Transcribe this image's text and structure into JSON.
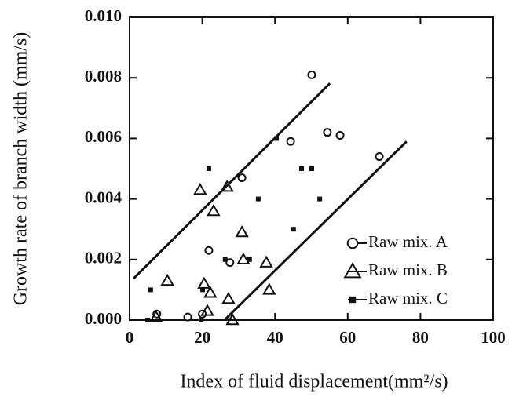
{
  "chart_data": {
    "type": "scatter",
    "xlabel": "Index of fluid  displacement(mm²/s)",
    "ylabel": "Growth rate of branch width (mm/s)",
    "xlim": [
      0,
      100
    ],
    "xticks": [
      0,
      20,
      40,
      60,
      80,
      100
    ],
    "ylim": [
      0,
      0.01
    ],
    "yticks": [
      {
        "value": 0,
        "label": "0.000"
      },
      0.002,
      0.004,
      0.006,
      0.008,
      {
        "value": 0.01,
        "label": "0.010"
      }
    ],
    "legend": "lower right",
    "series": [
      {
        "name": "Raw mix. A",
        "marker": "circle",
        "color": "#111111",
        "x": [
          7.5,
          16,
          20,
          21.8,
          27.6,
          30.9,
          44.3,
          50.1,
          54.4,
          57.9,
          68.7
        ],
        "values": [
          0.0002,
          0.0001,
          0.0002,
          0.0023,
          0.0019,
          0.0047,
          0.0059,
          0.0081,
          0.0062,
          0.0061,
          0.0054
        ]
      },
      {
        "name": "Raw mix. B",
        "marker": "triangle",
        "color": "#111111",
        "x": [
          19.4,
          10.4,
          7.3,
          20.5,
          21.4,
          22.2,
          23.1,
          26.8,
          27.2,
          28.3,
          30.9,
          31.3,
          37.6,
          38.4
        ],
        "values": [
          0.0043,
          0.0013,
          0.0001,
          0.0012,
          0.0003,
          0.0009,
          0.0036,
          0.0044,
          0.0007,
          0,
          0.0029,
          0.002,
          0.0019,
          0.001
        ]
      },
      {
        "name": "Raw mix. C",
        "marker": "square",
        "color": "#111111",
        "x": [
          5.0,
          5.8,
          19.7,
          20.1,
          21.8,
          26.3,
          33.0,
          35.4,
          40.4,
          45.1,
          47.3,
          50.1,
          52.3
        ],
        "values": [
          0,
          0.001,
          0,
          0.001,
          0.005,
          0.002,
          0.002,
          0.004,
          0.006,
          0.003,
          0.005,
          0.005,
          0.004
        ]
      }
    ],
    "fit_lines": [
      {
        "x": [
          1.1,
          55.1
        ],
        "values": [
          0.00137,
          0.00782
        ]
      },
      {
        "x": [
          26.1,
          76.2
        ],
        "values": [
          0,
          0.0059
        ]
      }
    ]
  }
}
